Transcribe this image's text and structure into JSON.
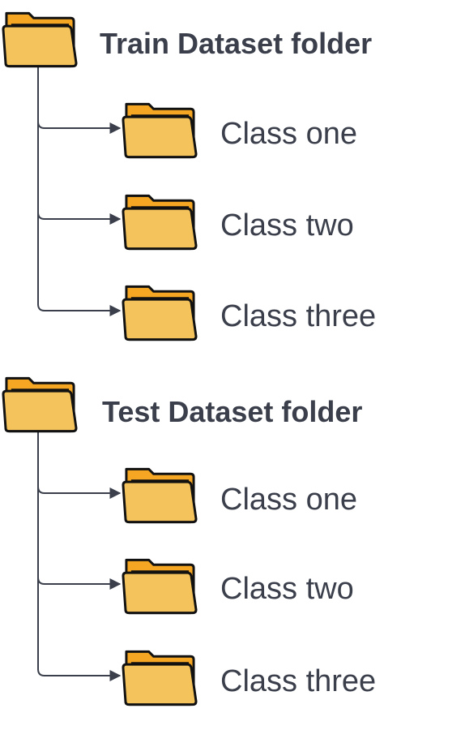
{
  "colors": {
    "folder_back": "#f5a623",
    "folder_front": "#f5c35c",
    "folder_outline": "#111111",
    "connector": "#3a3f4b",
    "text": "#3a3f4b",
    "background": "#ffffff"
  },
  "icons": {
    "folder": "folder-icon",
    "connector_arrow": "arrow-right-icon"
  },
  "train": {
    "title": "Train Dataset folder",
    "classes": [
      "Class one",
      "Class two",
      "Class three"
    ]
  },
  "test": {
    "title": "Test Dataset folder",
    "classes": [
      "Class one",
      "Class two",
      "Class three"
    ]
  }
}
